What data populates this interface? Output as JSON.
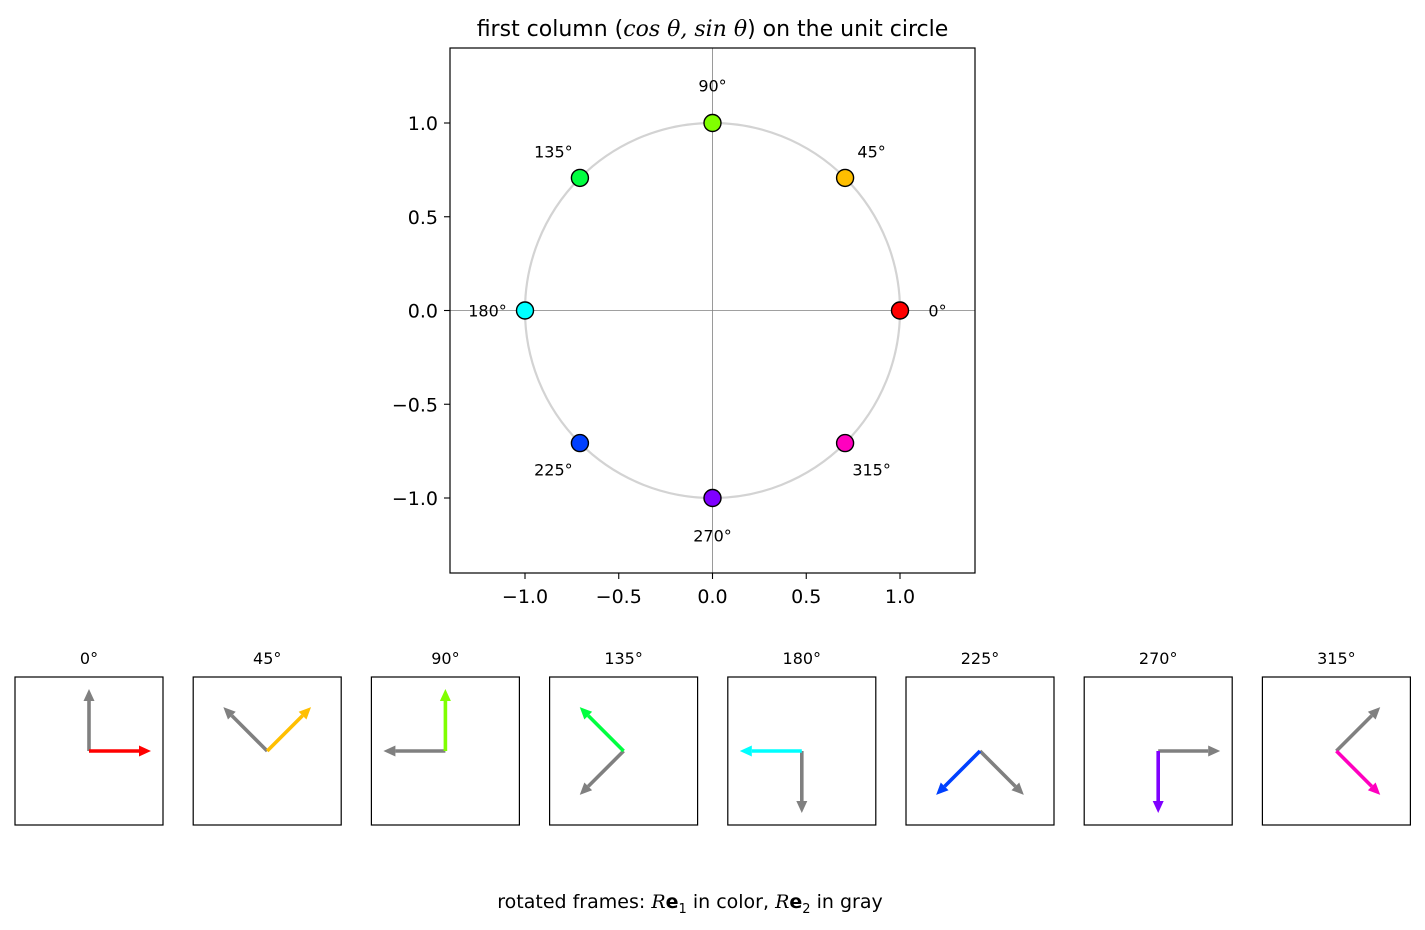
{
  "chart_data": [
    {
      "type": "scatter",
      "title": {
        "prefix": "first column (",
        "math": "cos θ, sin θ",
        "suffix": ") on the unit circle"
      },
      "xlim": [
        -1.4,
        1.4
      ],
      "ylim": [
        -1.4,
        1.4
      ],
      "xticks": [
        -1.0,
        -0.5,
        0.0,
        0.5,
        1.0
      ],
      "yticks": [
        -1.0,
        -0.5,
        0.0,
        0.5,
        1.0
      ],
      "tick_labels": [
        "−1.0",
        "−0.5",
        "0.0",
        "0.5",
        "1.0"
      ],
      "unit_circle": true,
      "grid": false,
      "points": [
        {
          "angle_deg": 0,
          "label": "0°",
          "x": 1.0,
          "y": 0.0,
          "color": "#ff0000"
        },
        {
          "angle_deg": 45,
          "label": "45°",
          "x": 0.7071,
          "y": 0.7071,
          "color": "#ffbf00"
        },
        {
          "angle_deg": 90,
          "label": "90°",
          "x": 0.0,
          "y": 1.0,
          "color": "#80ff00"
        },
        {
          "angle_deg": 135,
          "label": "135°",
          "x": -0.7071,
          "y": 0.7071,
          "color": "#00ff40"
        },
        {
          "angle_deg": 180,
          "label": "180°",
          "x": -1.0,
          "y": 0.0,
          "color": "#00ffff"
        },
        {
          "angle_deg": 225,
          "label": "225°",
          "x": -0.7071,
          "y": -0.7071,
          "color": "#0040ff"
        },
        {
          "angle_deg": 270,
          "label": "270°",
          "x": 0.0,
          "y": -1.0,
          "color": "#7f00ff"
        },
        {
          "angle_deg": 315,
          "label": "315°",
          "x": 0.7071,
          "y": -0.7071,
          "color": "#ff00bf"
        }
      ]
    },
    {
      "type": "vector-panels",
      "panels": [
        {
          "label": "0°",
          "angle_deg": 0,
          "e1_color": "#ff0000"
        },
        {
          "label": "45°",
          "angle_deg": 45,
          "e1_color": "#ffbf00"
        },
        {
          "label": "90°",
          "angle_deg": 90,
          "e1_color": "#80ff00"
        },
        {
          "label": "135°",
          "angle_deg": 135,
          "e1_color": "#00ff40"
        },
        {
          "label": "180°",
          "angle_deg": 180,
          "e1_color": "#00ffff"
        },
        {
          "label": "225°",
          "angle_deg": 225,
          "e1_color": "#0040ff"
        },
        {
          "label": "270°",
          "angle_deg": 270,
          "e1_color": "#7f00ff"
        },
        {
          "label": "315°",
          "angle_deg": 315,
          "e1_color": "#ff00bf"
        }
      ],
      "e2_color": "#808080",
      "caption": {
        "prefix": "rotated frames: ",
        "r": "R",
        "e": "e",
        "sub1": "1",
        "middle": " in color, ",
        "sub2": "2",
        "suffix": " in gray"
      }
    }
  ]
}
